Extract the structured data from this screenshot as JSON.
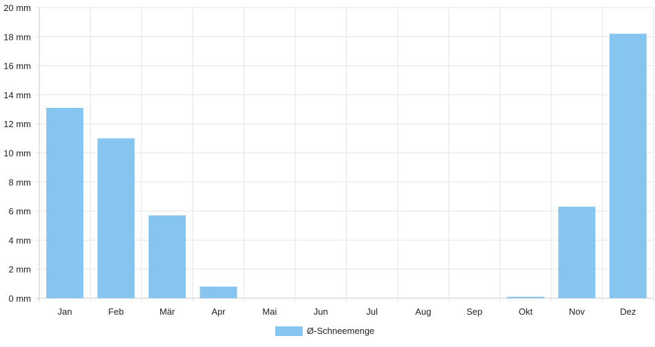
{
  "chart_data": {
    "type": "bar",
    "categories": [
      "Jan",
      "Feb",
      "Mär",
      "Apr",
      "Mai",
      "Jun",
      "Jul",
      "Aug",
      "Sep",
      "Okt",
      "Nov",
      "Dez"
    ],
    "series": [
      {
        "name": "Ø-Schneemenge",
        "values": [
          13.1,
          11.0,
          5.7,
          0.8,
          0,
          0,
          0,
          0,
          0,
          0.1,
          6.3,
          18.2
        ],
        "color": "#87c5f1"
      }
    ],
    "y_ticks": [
      "0 mm",
      "2 mm",
      "4 mm",
      "6 mm",
      "8 mm",
      "10 mm",
      "12 mm",
      "14 mm",
      "16 mm",
      "18 mm",
      "20 mm"
    ],
    "ylim": [
      0,
      20
    ],
    "grid": true,
    "legend_position": "bottom-center"
  }
}
